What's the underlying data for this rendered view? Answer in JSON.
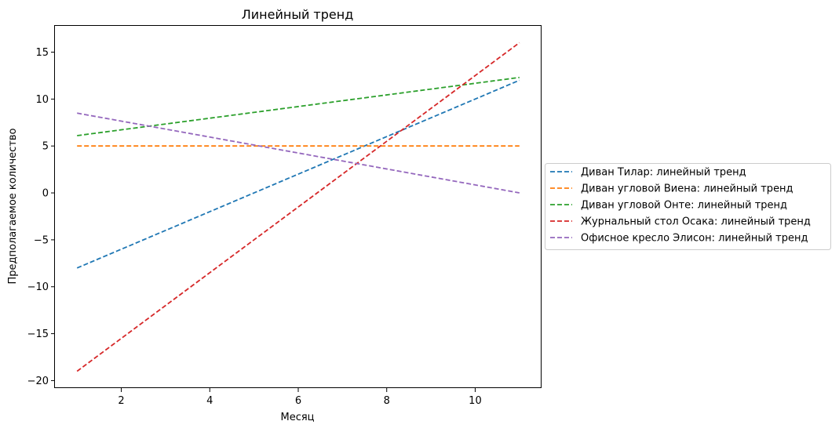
{
  "chart_data": {
    "type": "line",
    "title": "Линейный тренд",
    "xlabel": "Месяц",
    "ylabel": "Предполагаемое количество",
    "xlim": [
      0.5,
      11.5
    ],
    "ylim": [
      -20.8,
      17.8
    ],
    "xticks": [
      2,
      4,
      6,
      8,
      10
    ],
    "yticks": [
      15,
      10,
      5,
      0,
      -5,
      -10,
      -15,
      -20
    ],
    "ytick_labels": [
      "15",
      "10",
      "5",
      "0",
      "−5",
      "−10",
      "−15",
      "−20"
    ],
    "grid": false,
    "legend_position": "center-right-outside",
    "line_style": "dashed",
    "series": [
      {
        "name": "Диван Тилар: линейный тренд",
        "color": "#1f77b4",
        "x": [
          1,
          11
        ],
        "y": [
          -8.0,
          12.0
        ]
      },
      {
        "name": "Диван угловой Виена: линейный тренд",
        "color": "#ff7f0e",
        "x": [
          1,
          11
        ],
        "y": [
          5.0,
          5.0
        ]
      },
      {
        "name": "Диван угловой Онте: линейный тренд",
        "color": "#2ca02c",
        "x": [
          1,
          11
        ],
        "y": [
          6.1,
          12.3
        ]
      },
      {
        "name": "Журнальный стол Осака: линейный тренд",
        "color": "#d62728",
        "x": [
          1,
          11
        ],
        "y": [
          -19.0,
          16.0
        ]
      },
      {
        "name": "Офисное кресло Элисон: линейный тренд",
        "color": "#9467bd",
        "x": [
          1,
          11
        ],
        "y": [
          8.5,
          0.0
        ]
      }
    ]
  }
}
